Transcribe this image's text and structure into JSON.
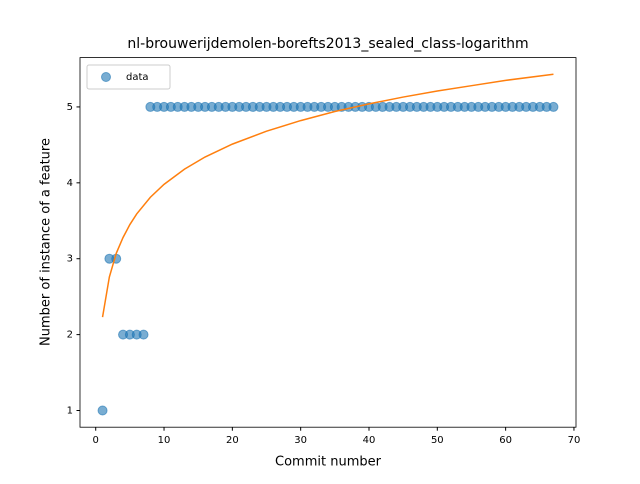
{
  "chart_data": {
    "type": "scatter",
    "title": "nl-brouwerijdemolen-borefts2013_sealed_class-logarithm",
    "xlabel": "Commit number",
    "ylabel": "Number of instance of a feature",
    "xlim": [
      -2.3,
      70.3
    ],
    "ylim": [
      0.78,
      5.65
    ],
    "xticks": [
      0,
      10,
      20,
      30,
      40,
      50,
      60,
      70
    ],
    "yticks": [
      1,
      2,
      3,
      4,
      5
    ],
    "legend": "upper left",
    "series": [
      {
        "name": "data",
        "style": "markers",
        "color": "#1f77b4",
        "x": [
          1,
          2,
          3,
          4,
          5,
          6,
          7,
          8,
          9,
          10,
          11,
          12,
          13,
          14,
          15,
          16,
          17,
          18,
          19,
          20,
          21,
          22,
          23,
          24,
          25,
          26,
          27,
          28,
          29,
          30,
          31,
          32,
          33,
          34,
          35,
          36,
          37,
          38,
          39,
          40,
          41,
          42,
          43,
          44,
          45,
          46,
          47,
          48,
          49,
          50,
          51,
          52,
          53,
          54,
          55,
          56,
          57,
          58,
          59,
          60,
          61,
          62,
          63,
          64,
          65,
          66,
          67
        ],
        "values": [
          1,
          3,
          3,
          2,
          2,
          2,
          2,
          5,
          5,
          5,
          5,
          5,
          5,
          5,
          5,
          5,
          5,
          5,
          5,
          5,
          5,
          5,
          5,
          5,
          5,
          5,
          5,
          5,
          5,
          5,
          5,
          5,
          5,
          5,
          5,
          5,
          5,
          5,
          5,
          5,
          5,
          5,
          5,
          5,
          5,
          5,
          5,
          5,
          5,
          5,
          5,
          5,
          5,
          5,
          5,
          5,
          5,
          5,
          5,
          5,
          5,
          5,
          5,
          5,
          5,
          5,
          5
        ]
      },
      {
        "style": "line",
        "color": "#ff7f0e",
        "x": [
          1,
          2,
          3,
          4,
          5,
          6,
          8,
          10,
          13,
          16,
          20,
          25,
          30,
          35,
          40,
          45,
          50,
          55,
          60,
          67
        ],
        "values": [
          2.23,
          2.76,
          3.07,
          3.28,
          3.45,
          3.59,
          3.81,
          3.98,
          4.18,
          4.34,
          4.51,
          4.68,
          4.82,
          4.94,
          5.04,
          5.13,
          5.21,
          5.28,
          5.35,
          5.43
        ]
      }
    ]
  }
}
